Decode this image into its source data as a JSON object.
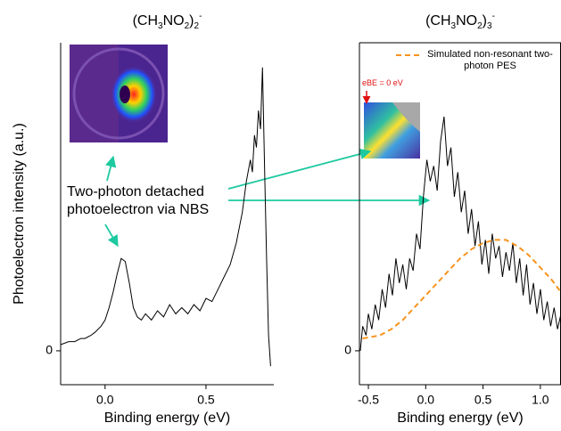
{
  "chart_data": [
    {
      "type": "line",
      "title": "(CH3NO2)2-",
      "x_label": "Binding energy (eV)",
      "y_label": "Photoelectron intensity (a.u.)",
      "annotation": "Two-photon detached photoelectron via NBS",
      "xlim": [
        -0.22,
        0.836
      ],
      "ylim": [
        -0.11,
        1.0
      ],
      "xticks": [
        {
          "value": 0,
          "label": "0.0"
        },
        0.5
      ],
      "yticks": [
        0
      ],
      "series": [
        {
          "color": "#000000",
          "x": [
            -0.22,
            -0.18,
            -0.15,
            -0.12,
            -0.1,
            -0.07,
            -0.05,
            -0.02,
            0.0,
            0.02,
            0.04,
            0.06,
            0.08,
            0.1,
            0.12,
            0.14,
            0.16,
            0.18,
            0.2,
            0.23,
            0.26,
            0.29,
            0.32,
            0.35,
            0.38,
            0.41,
            0.44,
            0.47,
            0.5,
            0.53,
            0.56,
            0.59,
            0.62,
            0.65,
            0.68,
            0.7,
            0.72,
            0.73,
            0.74,
            0.75,
            0.76,
            0.77,
            0.78,
            0.79,
            0.8,
            0.81,
            0.82
          ],
          "values": [
            0.02,
            0.03,
            0.03,
            0.04,
            0.04,
            0.05,
            0.06,
            0.08,
            0.1,
            0.14,
            0.19,
            0.25,
            0.3,
            0.29,
            0.22,
            0.14,
            0.11,
            0.1,
            0.12,
            0.1,
            0.13,
            0.11,
            0.15,
            0.12,
            0.14,
            0.12,
            0.15,
            0.13,
            0.17,
            0.16,
            0.2,
            0.24,
            0.28,
            0.35,
            0.45,
            0.55,
            0.62,
            0.58,
            0.7,
            0.66,
            0.78,
            0.72,
            0.92,
            0.6,
            0.3,
            0.05,
            -0.05
          ]
        }
      ]
    },
    {
      "type": "line",
      "title": "(CH3NO2)3-",
      "x_label": "Binding energy (eV)",
      "annotation": "eBE = 0 eV",
      "xlim": [
        -0.578,
        1.18
      ],
      "ylim": [
        -0.11,
        1.0
      ],
      "xticks": [
        -0.5,
        {
          "value": 0,
          "label": "0.0"
        },
        0.5,
        {
          "value": 1,
          "label": "1.0"
        }
      ],
      "yticks": [
        0
      ],
      "legend": "upper right",
      "series": [
        {
          "color": "#000000",
          "x": [
            -0.57,
            -0.55,
            -0.52,
            -0.5,
            -0.47,
            -0.44,
            -0.41,
            -0.38,
            -0.35,
            -0.32,
            -0.29,
            -0.26,
            -0.23,
            -0.2,
            -0.17,
            -0.14,
            -0.11,
            -0.08,
            -0.05,
            -0.02,
            0.01,
            0.04,
            0.07,
            0.1,
            0.13,
            0.16,
            0.19,
            0.22,
            0.25,
            0.28,
            0.31,
            0.34,
            0.37,
            0.4,
            0.43,
            0.46,
            0.49,
            0.52,
            0.55,
            0.58,
            0.61,
            0.64,
            0.67,
            0.7,
            0.73,
            0.76,
            0.79,
            0.82,
            0.85,
            0.88,
            0.91,
            0.94,
            0.97,
            1.0,
            1.03,
            1.06,
            1.09,
            1.12,
            1.15,
            1.18
          ],
          "values": [
            0.0,
            0.08,
            0.05,
            0.12,
            0.07,
            0.15,
            0.1,
            0.2,
            0.14,
            0.25,
            0.18,
            0.3,
            0.22,
            0.28,
            0.2,
            0.3,
            0.26,
            0.38,
            0.33,
            0.5,
            0.62,
            0.55,
            0.6,
            0.52,
            0.68,
            0.76,
            0.6,
            0.66,
            0.5,
            0.58,
            0.45,
            0.52,
            0.38,
            0.46,
            0.34,
            0.42,
            0.28,
            0.36,
            0.25,
            0.38,
            0.3,
            0.34,
            0.24,
            0.32,
            0.26,
            0.35,
            0.22,
            0.3,
            0.18,
            0.28,
            0.15,
            0.22,
            0.12,
            0.2,
            0.1,
            0.16,
            0.08,
            0.14,
            0.07,
            0.12
          ]
        },
        {
          "name": "Simulated non-resonant two-photon PES",
          "color": "#f7931e",
          "dashed": true,
          "x": [
            -0.55,
            -0.4,
            -0.3,
            -0.2,
            -0.1,
            0.0,
            0.1,
            0.2,
            0.3,
            0.4,
            0.5,
            0.6,
            0.7,
            0.8,
            0.9,
            1.0,
            1.1,
            1.18
          ],
          "values": [
            0.04,
            0.05,
            0.07,
            0.1,
            0.14,
            0.18,
            0.22,
            0.26,
            0.3,
            0.33,
            0.35,
            0.36,
            0.36,
            0.34,
            0.31,
            0.27,
            0.23,
            0.19
          ]
        }
      ]
    }
  ]
}
